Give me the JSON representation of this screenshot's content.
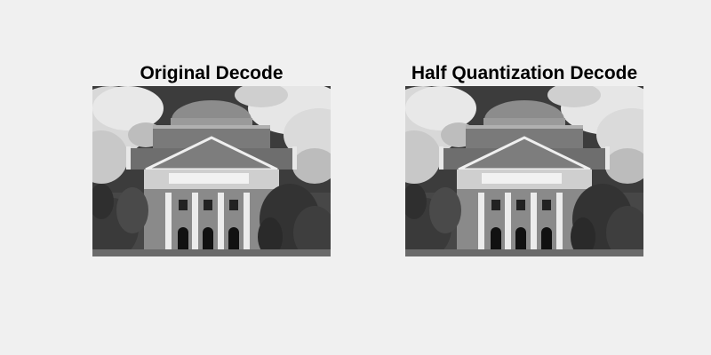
{
  "figure": {
    "background_color": "#f0f0f0",
    "panels": [
      {
        "title": "Original Decode",
        "image_subject": "grayscale photo of a domed building with columns, trees and clouds"
      },
      {
        "title": "Half Quantization Decode",
        "image_subject": "grayscale photo of a domed building with columns, trees and clouds"
      }
    ]
  }
}
